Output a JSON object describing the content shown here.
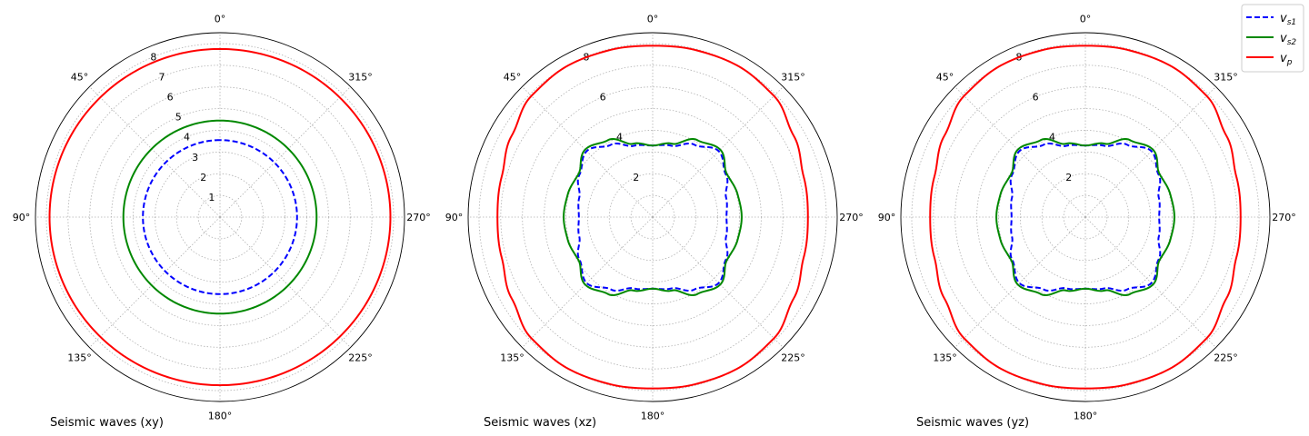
{
  "chart_data": [
    {
      "type": "polar-line",
      "panel_label": "Seismic waves (xy)",
      "angle_ticks": [
        "0°",
        "45°",
        "90°",
        "135°",
        "180°",
        "225°",
        "270°",
        "315°"
      ],
      "radial_ticks": [
        1,
        2,
        3,
        4,
        5,
        6,
        7,
        8
      ],
      "rmax": 8.5,
      "grid": true,
      "series": [
        {
          "name": "v_s1",
          "color": "#0000ff",
          "dash": true,
          "curve": {
            "base": 3.55,
            "a4": 0.0
          }
        },
        {
          "name": "v_s2",
          "color": "#008800",
          "dash": false,
          "curve": {
            "base": 4.45,
            "a4": 0.0
          }
        },
        {
          "name": "v_p",
          "color": "#ff0000",
          "dash": false,
          "curve": {
            "base": 7.8,
            "a4": 0.0,
            "a2": -0.05
          }
        }
      ]
    },
    {
      "type": "polar-line",
      "panel_label": "Seismic waves (xz)",
      "angle_ticks": [
        "0°",
        "45°",
        "90°",
        "135°",
        "180°",
        "225°",
        "270°",
        "315°"
      ],
      "radial_ticks": [
        2,
        4,
        6,
        8
      ],
      "rmax": 8.5,
      "grid": true,
      "series": [
        {
          "name": "v_s1",
          "color": "#0000ff",
          "dash": true,
          "curve": {
            "samples_deg": [
              0,
              15,
              30,
              45,
              60,
              75,
              90
            ],
            "r": [
              3.3,
              3.4,
              3.85,
              4.3,
              3.9,
              3.5,
              3.4
            ]
          }
        },
        {
          "name": "v_s2",
          "color": "#008800",
          "dash": false,
          "curve": {
            "samples_deg": [
              0,
              15,
              30,
              45,
              60,
              75,
              90
            ],
            "r": [
              3.3,
              3.5,
              4.1,
              4.4,
              3.95,
              4.05,
              4.1
            ]
          }
        },
        {
          "name": "v_p",
          "color": "#ff0000",
          "dash": false,
          "curve": {
            "samples_deg": [
              0,
              15,
              30,
              45,
              60,
              75,
              90
            ],
            "r": [
              7.9,
              7.95,
              8.0,
              7.9,
              7.5,
              7.2,
              7.15
            ]
          }
        }
      ]
    },
    {
      "type": "polar-line",
      "panel_label": "Seismic waves (yz)",
      "angle_ticks": [
        "0°",
        "45°",
        "90°",
        "135°",
        "180°",
        "225°",
        "270°",
        "315°"
      ],
      "radial_ticks": [
        2,
        4,
        6,
        8
      ],
      "rmax": 8.5,
      "grid": true,
      "series": [
        {
          "name": "v_s1",
          "color": "#0000ff",
          "dash": true,
          "curve": {
            "samples_deg": [
              0,
              15,
              30,
              45,
              60,
              75,
              90
            ],
            "r": [
              3.3,
              3.4,
              3.85,
              4.3,
              3.9,
              3.5,
              3.4
            ]
          }
        },
        {
          "name": "v_s2",
          "color": "#008800",
          "dash": false,
          "curve": {
            "samples_deg": [
              0,
              15,
              30,
              45,
              60,
              75,
              90
            ],
            "r": [
              3.3,
              3.5,
              4.1,
              4.4,
              3.95,
              4.05,
              4.1
            ]
          }
        },
        {
          "name": "v_p",
          "color": "#ff0000",
          "dash": false,
          "curve": {
            "samples_deg": [
              0,
              15,
              30,
              45,
              60,
              75,
              90
            ],
            "r": [
              7.9,
              7.95,
              8.0,
              7.9,
              7.5,
              7.2,
              7.15
            ]
          }
        }
      ]
    }
  ],
  "legend": {
    "placement": "top-right",
    "items": [
      {
        "base": "v",
        "sub": "s1",
        "color": "#0000ff",
        "dash": true
      },
      {
        "base": "v",
        "sub": "s2",
        "color": "#008800",
        "dash": false
      },
      {
        "base": "v",
        "sub": "p",
        "color": "#ff0000",
        "dash": false
      }
    ]
  }
}
